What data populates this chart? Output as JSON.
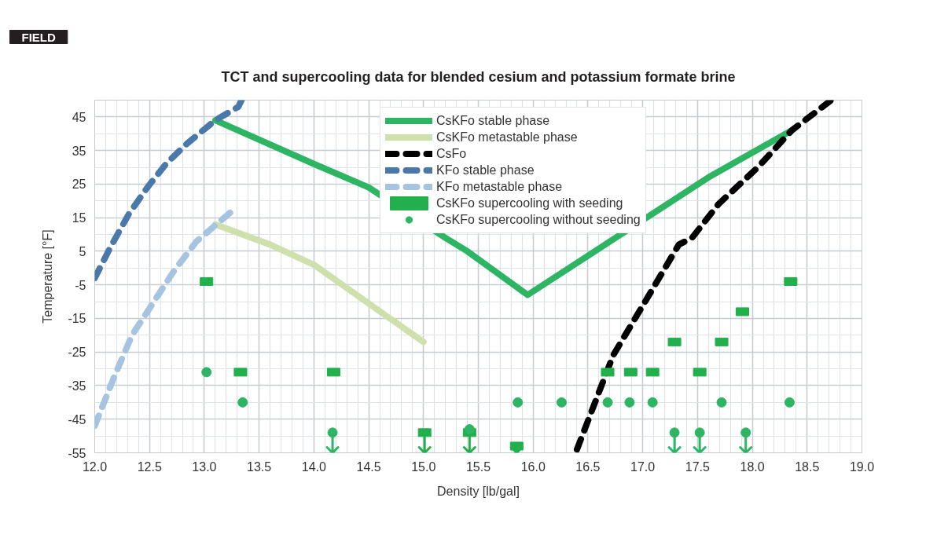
{
  "chart_data": {
    "type": "line",
    "title": "TCT and supercooling data for blended cesium and potassium formate brine",
    "xlabel": "Density [lb/gal]",
    "ylabel": "Temperature [°F]",
    "annotations": [
      "FIELD"
    ],
    "xlim": [
      12.0,
      19.0
    ],
    "xticks": [
      {
        "value": 12.0,
        "label": "12.0"
      },
      12.5,
      {
        "value": 13.0,
        "label": "13.0"
      },
      13.5,
      {
        "value": 14.0,
        "label": "14.0"
      },
      14.5,
      {
        "value": 15.0,
        "label": "15.0"
      },
      15.5,
      {
        "value": 16.0,
        "label": "16.0"
      },
      16.5,
      {
        "value": 17.0,
        "label": "17.0"
      },
      17.5,
      {
        "value": 18.0,
        "label": "18.0"
      },
      18.5,
      {
        "value": 19.0,
        "label": "19.0"
      }
    ],
    "ylim": [
      -55,
      50
    ],
    "yticks": [
      45,
      35,
      25,
      15,
      5,
      -5,
      -15,
      -25,
      -35,
      -45,
      -55
    ],
    "grid": true,
    "legend": "top",
    "series": [
      {
        "name": "CsKFo stable phase",
        "line_style": "solid",
        "color": "#2db563",
        "x": [
          13.1,
          14.0,
          14.5,
          15.2,
          15.4,
          15.95,
          17.6,
          18.36
        ],
        "values": [
          44,
          31,
          24,
          9,
          5,
          -8,
          27,
          41
        ]
      },
      {
        "name": "CsKFo metastable phase",
        "line_style": "solid",
        "color": "#cfe0ad",
        "x": [
          13.1,
          13.6,
          14.0,
          14.65,
          15.0
        ],
        "values": [
          13,
          7,
          1,
          -14,
          -22
        ]
      },
      {
        "name": "CsFo",
        "line_style": "dashed",
        "color": "#000000",
        "x": [
          16.4,
          16.73,
          17.04,
          17.33,
          17.45,
          17.69,
          18.05,
          18.36,
          18.72
        ],
        "values": [
          -54,
          -26,
          -9,
          7,
          9,
          19,
          30,
          41,
          50
        ]
      },
      {
        "name": "KFo stable phase",
        "line_style": "dashed",
        "color": "#4a78a8",
        "x": [
          12.0,
          12.14,
          12.31,
          12.48,
          12.65,
          12.84,
          13.1,
          13.31,
          13.34
        ],
        "values": [
          -3,
          6,
          16,
          24,
          31,
          37,
          44,
          48,
          50
        ]
      },
      {
        "name": "KFo metastable phase",
        "line_style": "dashed",
        "color": "#a6c3e0",
        "x": [
          12.0,
          12.17,
          12.34,
          12.52,
          12.72,
          12.93,
          13.11,
          13.29
        ],
        "values": [
          -47,
          -33,
          -20,
          -11,
          -1,
          8,
          13,
          18
        ]
      },
      {
        "name": "CsKFo supercooling with seeding",
        "type": "scatter",
        "marker": "square",
        "color": "#21b04b",
        "x": [
          13.02,
          13.33,
          14.18,
          15.01,
          15.42,
          15.85,
          16.68,
          16.89,
          17.09,
          17.29,
          17.52,
          17.72,
          17.91,
          18.35
        ],
        "values": [
          -4,
          -31,
          -31,
          -49,
          -49,
          -53,
          -31,
          -31,
          -31,
          -22,
          -31,
          -22,
          -13,
          -4
        ],
        "errors": [
          null,
          null,
          null,
          [
            -55,
            -49
          ],
          [
            -55,
            -49
          ],
          [
            -55,
            -53
          ],
          null,
          null,
          null,
          null,
          null,
          null,
          null,
          null
        ]
      },
      {
        "name": "CsKFo supercooling without seeding",
        "type": "scatter",
        "marker": "circle",
        "color": "#2db563",
        "x": [
          13.02,
          13.35,
          14.17,
          15.42,
          15.86,
          16.26,
          16.68,
          16.88,
          17.09,
          17.29,
          17.52,
          17.72,
          17.94,
          18.34
        ],
        "values": [
          -31,
          -40,
          -49,
          -48,
          -40,
          -40,
          -40,
          -40,
          -40,
          -49,
          -49,
          -40,
          -49,
          -40
        ],
        "errors": [
          null,
          null,
          [
            -55,
            -49
          ],
          null,
          null,
          null,
          null,
          null,
          null,
          [
            -55,
            -49
          ],
          [
            -55,
            -49
          ],
          null,
          [
            -55,
            -49
          ],
          null
        ]
      }
    ]
  }
}
